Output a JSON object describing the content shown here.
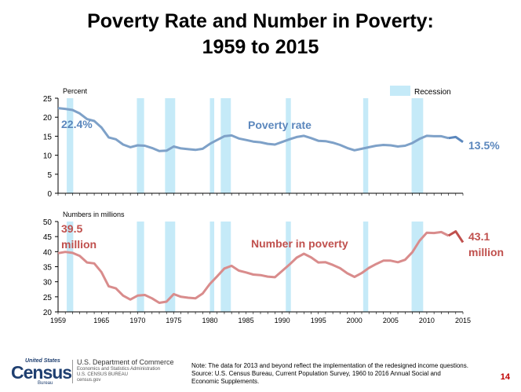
{
  "title_line1": "Poverty Rate and Number in Poverty:",
  "title_line2": "1959 to 2015",
  "legend_recession": "Recession",
  "note_line1": "Note: The data for 2013 and beyond reflect the implementation of the redesigned income questions.",
  "note_line2": "Source: U.S. Census Bureau, Current Population Survey, 1960 to 2016 Annual Social and",
  "note_line3": "Economic Supplements.",
  "page_number": "14",
  "logo": {
    "united_states": "United States",
    "census": "Census",
    "bureau": "Bureau",
    "dept": "U.S. Department of Commerce",
    "sub1": "Economics and Statistics Administration",
    "sub2": "U.S. CENSUS BUREAU",
    "sub3": "census.gov"
  },
  "colors": {
    "rate_line": "#7ea1c8",
    "rate_label": "#5b87bd",
    "count_line": "#d98c8c",
    "count_label": "#c0504d",
    "recession": "#c5eaf8"
  },
  "chart_data": [
    {
      "type": "line",
      "ylabel": "Percent",
      "ylim": [
        0,
        25
      ],
      "yticks": [
        "0",
        "5",
        "10",
        "15",
        "20",
        "25"
      ],
      "series_label": "Poverty rate",
      "start_label": "22.4%",
      "end_label": "13.5%",
      "x": [
        1959,
        1960,
        1961,
        1962,
        1963,
        1964,
        1965,
        1966,
        1967,
        1968,
        1969,
        1970,
        1971,
        1972,
        1973,
        1974,
        1975,
        1976,
        1977,
        1978,
        1979,
        1980,
        1981,
        1982,
        1983,
        1984,
        1985,
        1986,
        1987,
        1988,
        1989,
        1990,
        1991,
        1992,
        1993,
        1994,
        1995,
        1996,
        1997,
        1998,
        1999,
        2000,
        2001,
        2002,
        2003,
        2004,
        2005,
        2006,
        2007,
        2008,
        2009,
        2010,
        2011,
        2012,
        2013,
        2014,
        2015
      ],
      "values": [
        22.4,
        22.2,
        21.9,
        21.0,
        19.5,
        19.0,
        17.3,
        14.7,
        14.2,
        12.8,
        12.1,
        12.6,
        12.5,
        11.9,
        11.1,
        11.2,
        12.3,
        11.8,
        11.6,
        11.4,
        11.7,
        13.0,
        14.0,
        15.0,
        15.2,
        14.4,
        14.0,
        13.6,
        13.4,
        13.0,
        12.8,
        13.5,
        14.2,
        14.8,
        15.1,
        14.5,
        13.8,
        13.7,
        13.3,
        12.7,
        11.9,
        11.3,
        11.7,
        12.1,
        12.5,
        12.7,
        12.6,
        12.3,
        12.5,
        13.2,
        14.3,
        15.1,
        15.0,
        15.0,
        14.5,
        14.8,
        13.5
      ],
      "redesign_from": 2013
    },
    {
      "type": "line",
      "ylabel": "Numbers  in millions",
      "ylim": [
        20,
        50
      ],
      "yticks": [
        "20",
        "25",
        "30",
        "35",
        "40",
        "45",
        "50"
      ],
      "series_label": "Number in poverty",
      "start_label_1": "39.5",
      "start_label_2": "million",
      "end_label_1": "43.1",
      "end_label_2": "million",
      "x": [
        1959,
        1960,
        1961,
        1962,
        1963,
        1964,
        1965,
        1966,
        1967,
        1968,
        1969,
        1970,
        1971,
        1972,
        1973,
        1974,
        1975,
        1976,
        1977,
        1978,
        1979,
        1980,
        1981,
        1982,
        1983,
        1984,
        1985,
        1986,
        1987,
        1988,
        1989,
        1990,
        1991,
        1992,
        1993,
        1994,
        1995,
        1996,
        1997,
        1998,
        1999,
        2000,
        2001,
        2002,
        2003,
        2004,
        2005,
        2006,
        2007,
        2008,
        2009,
        2010,
        2011,
        2012,
        2013,
        2014,
        2015
      ],
      "values": [
        39.5,
        39.9,
        39.6,
        38.6,
        36.4,
        36.1,
        33.2,
        28.5,
        27.8,
        25.4,
        24.1,
        25.4,
        25.6,
        24.5,
        23.0,
        23.4,
        25.9,
        25.0,
        24.7,
        24.5,
        26.1,
        29.3,
        31.8,
        34.4,
        35.3,
        33.7,
        33.1,
        32.4,
        32.2,
        31.7,
        31.5,
        33.6,
        35.7,
        38.0,
        39.3,
        38.1,
        36.4,
        36.5,
        35.6,
        34.5,
        32.8,
        31.6,
        32.9,
        34.6,
        35.9,
        37.0,
        37.0,
        36.5,
        37.3,
        39.8,
        43.6,
        46.3,
        46.2,
        46.5,
        45.3,
        46.7,
        43.1
      ],
      "redesign_from": 2013
    }
  ],
  "x_axis": {
    "ticks": [
      "1959",
      "1965",
      "1970",
      "1975",
      "1980",
      "1985",
      "1990",
      "1995",
      "2000",
      "2005",
      "2010",
      "2015"
    ],
    "tick_years": [
      1959,
      1965,
      1970,
      1975,
      1980,
      1985,
      1990,
      1995,
      2000,
      2005,
      2010,
      2015
    ],
    "range": [
      1959,
      2015
    ]
  },
  "recessions": [
    [
      1960.2,
      1961.1
    ],
    [
      1969.9,
      1970.9
    ],
    [
      1973.8,
      1975.2
    ],
    [
      1980.0,
      1980.6
    ],
    [
      1981.5,
      1982.9
    ],
    [
      1990.5,
      1991.2
    ],
    [
      2001.2,
      2001.9
    ],
    [
      2007.9,
      2009.5
    ]
  ]
}
